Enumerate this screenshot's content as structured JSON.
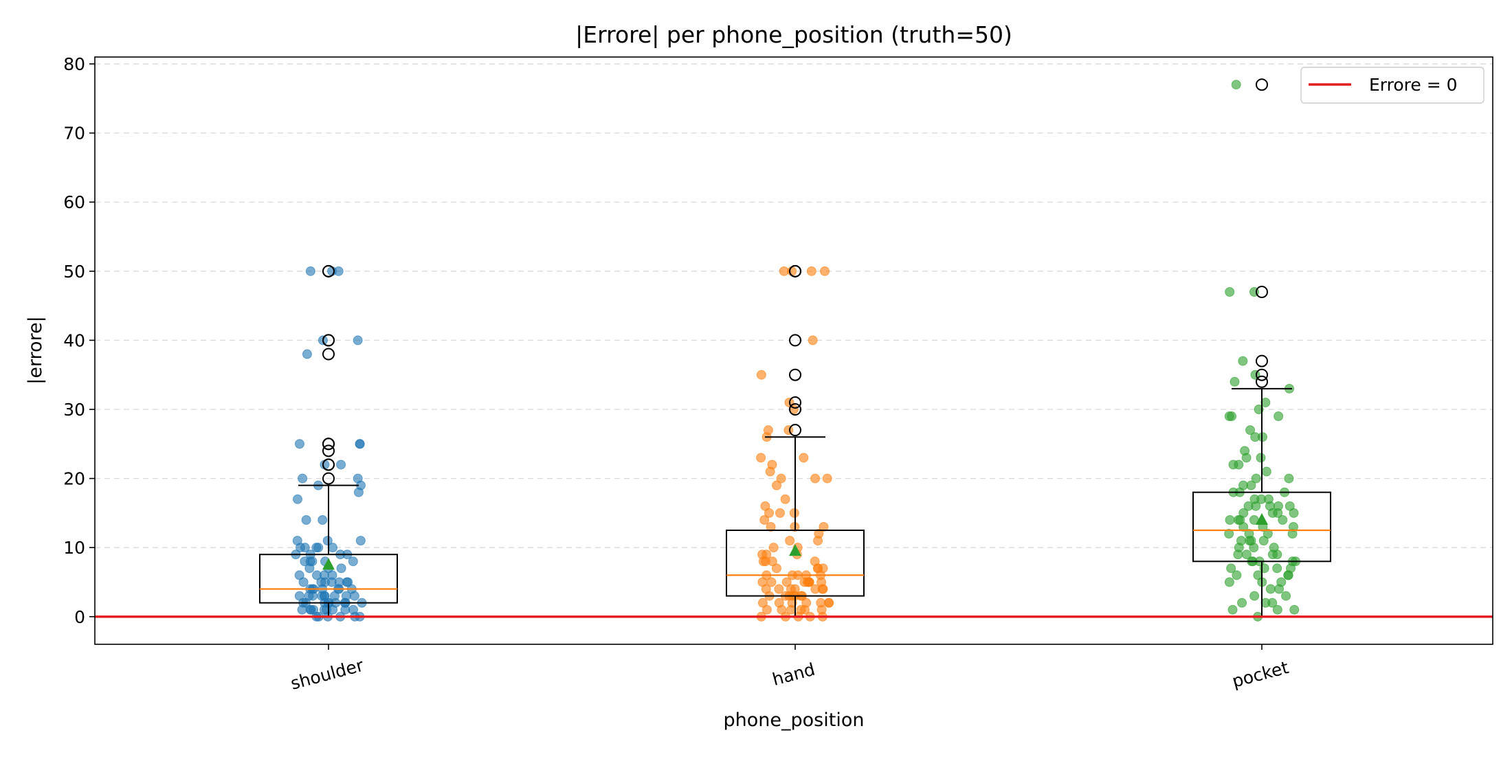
{
  "chart_data": {
    "type": "box",
    "title": "|Errore| per phone_position (truth=50)",
    "xlabel": "phone_position",
    "ylabel": "|errore|",
    "ylim": [
      -4,
      81
    ],
    "yticks": [
      0,
      10,
      20,
      30,
      40,
      50,
      60,
      70,
      80
    ],
    "grid": "horizontal dashed",
    "legend": {
      "placement": "top-right",
      "entries": [
        "Errore = 0"
      ]
    },
    "reference_line": {
      "y": 0,
      "label": "Errore = 0",
      "color": "#e41a1c"
    },
    "categories": [
      "shoulder",
      "hand",
      "pocket"
    ],
    "colors": {
      "shoulder": "#1f77b4",
      "hand": "#ff7f0e",
      "pocket": "#2ca02c",
      "median": "#ff7f0e",
      "mean_marker": "#2ca02c",
      "reference": "#e41a1c"
    },
    "boxes": [
      {
        "category": "shoulder",
        "q1": 2,
        "median": 4,
        "q3": 9,
        "whisker_low": 0,
        "whisker_high": 19,
        "mean": 7.5,
        "outliers": [
          20,
          22,
          22,
          24,
          25,
          25,
          38,
          40,
          40,
          50,
          50
        ]
      },
      {
        "category": "hand",
        "q1": 3,
        "median": 6,
        "q3": 12.5,
        "whisker_low": 0,
        "whisker_high": 26,
        "mean": 9.5,
        "outliers": [
          27,
          30,
          31,
          35,
          40,
          50,
          50
        ]
      },
      {
        "category": "pocket",
        "q1": 8,
        "median": 12.5,
        "q3": 18,
        "whisker_low": 0,
        "whisker_high": 33,
        "mean": 14,
        "outliers": [
          34,
          35,
          37,
          47,
          77
        ]
      }
    ],
    "points": {
      "shoulder": [
        [
          0,
          0
        ],
        [
          0,
          1
        ],
        [
          0,
          1
        ],
        [
          0,
          1
        ],
        [
          0,
          2
        ],
        [
          0,
          2
        ],
        [
          0,
          3
        ],
        [
          0,
          3
        ],
        [
          0,
          3
        ],
        [
          0,
          4
        ],
        [
          0,
          4
        ],
        [
          0,
          5
        ],
        [
          0,
          5
        ],
        [
          0,
          6
        ],
        [
          0,
          7
        ],
        [
          0,
          8
        ],
        [
          0,
          9
        ],
        [
          0,
          10
        ],
        [
          0,
          10
        ],
        [
          0,
          11
        ],
        [
          0,
          14
        ],
        [
          0,
          17
        ],
        [
          0,
          18
        ],
        [
          0,
          19
        ],
        [
          0,
          20
        ],
        [
          0,
          22
        ],
        [
          0,
          25
        ],
        [
          0,
          38
        ],
        [
          0,
          40
        ],
        [
          0,
          50
        ],
        [
          0,
          0
        ],
        [
          0,
          1
        ],
        [
          0,
          2
        ],
        [
          0,
          2
        ],
        [
          0,
          3
        ],
        [
          0,
          4
        ],
        [
          0,
          5
        ],
        [
          0,
          6
        ],
        [
          0,
          8
        ],
        [
          0,
          9
        ],
        [
          0,
          10
        ],
        [
          0,
          19
        ],
        [
          0,
          25
        ],
        [
          0,
          40
        ],
        [
          0,
          50
        ],
        [
          0,
          0
        ],
        [
          0,
          1
        ],
        [
          0,
          1
        ],
        [
          0,
          2
        ],
        [
          0,
          3
        ],
        [
          0,
          3
        ],
        [
          0,
          4
        ],
        [
          0,
          5
        ],
        [
          0,
          7
        ],
        [
          0,
          8
        ],
        [
          0,
          10
        ],
        [
          0,
          11
        ],
        [
          0,
          14
        ],
        [
          0,
          22
        ],
        [
          0,
          50
        ],
        [
          0,
          0
        ],
        [
          0,
          0
        ],
        [
          0,
          1
        ],
        [
          0,
          2
        ],
        [
          0,
          3
        ],
        [
          0,
          4
        ],
        [
          0,
          5
        ],
        [
          0,
          6
        ],
        [
          0,
          8
        ],
        [
          0,
          9
        ],
        [
          0,
          1
        ],
        [
          0,
          2
        ],
        [
          0,
          3
        ],
        [
          0,
          5
        ],
        [
          0,
          8
        ],
        [
          0,
          11
        ],
        [
          0,
          20
        ],
        [
          0,
          1
        ],
        [
          0,
          2
        ],
        [
          0,
          4
        ],
        [
          0,
          6
        ],
        [
          0,
          9
        ],
        [
          0,
          10
        ],
        [
          0,
          0
        ],
        [
          0,
          3
        ],
        [
          0,
          5
        ],
        [
          0,
          7
        ],
        [
          0,
          2
        ],
        [
          0,
          4
        ],
        [
          0,
          25
        ]
      ],
      "hand": [
        [
          1,
          0
        ],
        [
          1,
          0
        ],
        [
          1,
          1
        ],
        [
          1,
          1
        ],
        [
          1,
          1
        ],
        [
          1,
          2
        ],
        [
          1,
          2
        ],
        [
          1,
          2
        ],
        [
          1,
          3
        ],
        [
          1,
          3
        ],
        [
          1,
          3
        ],
        [
          1,
          4
        ],
        [
          1,
          4
        ],
        [
          1,
          4
        ],
        [
          1,
          5
        ],
        [
          1,
          5
        ],
        [
          1,
          5
        ],
        [
          1,
          5
        ],
        [
          1,
          6
        ],
        [
          1,
          6
        ],
        [
          1,
          7
        ],
        [
          1,
          7
        ],
        [
          1,
          8
        ],
        [
          1,
          8
        ],
        [
          1,
          9
        ],
        [
          1,
          9
        ],
        [
          1,
          10
        ],
        [
          1,
          11
        ],
        [
          1,
          12
        ],
        [
          1,
          13
        ],
        [
          1,
          13
        ],
        [
          1,
          14
        ],
        [
          1,
          15
        ],
        [
          1,
          15
        ],
        [
          1,
          16
        ],
        [
          1,
          17
        ],
        [
          1,
          19
        ],
        [
          1,
          20
        ],
        [
          1,
          20
        ],
        [
          1,
          21
        ],
        [
          1,
          22
        ],
        [
          1,
          23
        ],
        [
          1,
          23
        ],
        [
          1,
          26
        ],
        [
          1,
          27
        ],
        [
          1,
          27
        ],
        [
          1,
          30
        ],
        [
          1,
          31
        ],
        [
          1,
          35
        ],
        [
          1,
          40
        ],
        [
          1,
          50
        ],
        [
          1,
          50
        ],
        [
          1,
          50
        ],
        [
          1,
          50
        ],
        [
          1,
          0
        ],
        [
          1,
          1
        ],
        [
          1,
          2
        ],
        [
          1,
          3
        ],
        [
          1,
          4
        ],
        [
          1,
          5
        ],
        [
          1,
          6
        ],
        [
          1,
          8
        ],
        [
          1,
          10
        ],
        [
          1,
          1
        ],
        [
          1,
          2
        ],
        [
          1,
          3
        ],
        [
          1,
          4
        ],
        [
          1,
          5
        ],
        [
          1,
          6
        ],
        [
          1,
          7
        ],
        [
          1,
          9
        ],
        [
          1,
          11
        ],
        [
          1,
          15
        ],
        [
          1,
          0
        ],
        [
          1,
          2
        ],
        [
          1,
          3
        ],
        [
          1,
          4
        ],
        [
          1,
          5
        ],
        [
          1,
          6
        ],
        [
          1,
          20
        ],
        [
          1,
          1
        ],
        [
          1,
          3
        ],
        [
          1,
          4
        ],
        [
          1,
          5
        ],
        [
          1,
          8
        ],
        [
          1,
          13
        ],
        [
          1,
          0
        ],
        [
          1,
          2
        ],
        [
          1,
          5
        ],
        [
          1,
          7
        ]
      ],
      "pocket": [
        [
          2,
          0
        ],
        [
          2,
          1
        ],
        [
          2,
          1
        ],
        [
          2,
          2
        ],
        [
          2,
          2
        ],
        [
          2,
          3
        ],
        [
          2,
          4
        ],
        [
          2,
          5
        ],
        [
          2,
          5
        ],
        [
          2,
          6
        ],
        [
          2,
          6
        ],
        [
          2,
          7
        ],
        [
          2,
          7
        ],
        [
          2,
          8
        ],
        [
          2,
          8
        ],
        [
          2,
          8
        ],
        [
          2,
          9
        ],
        [
          2,
          9
        ],
        [
          2,
          10
        ],
        [
          2,
          10
        ],
        [
          2,
          11
        ],
        [
          2,
          11
        ],
        [
          2,
          12
        ],
        [
          2,
          12
        ],
        [
          2,
          13
        ],
        [
          2,
          13
        ],
        [
          2,
          14
        ],
        [
          2,
          14
        ],
        [
          2,
          14
        ],
        [
          2,
          15
        ],
        [
          2,
          15
        ],
        [
          2,
          16
        ],
        [
          2,
          16
        ],
        [
          2,
          16
        ],
        [
          2,
          17
        ],
        [
          2,
          17
        ],
        [
          2,
          18
        ],
        [
          2,
          18
        ],
        [
          2,
          19
        ],
        [
          2,
          20
        ],
        [
          2,
          20
        ],
        [
          2,
          21
        ],
        [
          2,
          22
        ],
        [
          2,
          22
        ],
        [
          2,
          23
        ],
        [
          2,
          24
        ],
        [
          2,
          26
        ],
        [
          2,
          26
        ],
        [
          2,
          27
        ],
        [
          2,
          29
        ],
        [
          2,
          29
        ],
        [
          2,
          29
        ],
        [
          2,
          30
        ],
        [
          2,
          31
        ],
        [
          2,
          33
        ],
        [
          2,
          34
        ],
        [
          2,
          35
        ],
        [
          2,
          37
        ],
        [
          2,
          47
        ],
        [
          2,
          47
        ],
        [
          2,
          77
        ],
        [
          2,
          1
        ],
        [
          2,
          3
        ],
        [
          2,
          5
        ],
        [
          2,
          7
        ],
        [
          2,
          9
        ],
        [
          2,
          11
        ],
        [
          2,
          13
        ],
        [
          2,
          15
        ],
        [
          2,
          17
        ],
        [
          2,
          19
        ],
        [
          2,
          4
        ],
        [
          2,
          6
        ],
        [
          2,
          8
        ],
        [
          2,
          10
        ],
        [
          2,
          12
        ],
        [
          2,
          14
        ],
        [
          2,
          16
        ],
        [
          2,
          18
        ],
        [
          2,
          2
        ],
        [
          2,
          6
        ],
        [
          2,
          9
        ],
        [
          2,
          12
        ],
        [
          2,
          15
        ],
        [
          2,
          23
        ],
        [
          2,
          8
        ],
        [
          2,
          11
        ],
        [
          2,
          14
        ],
        [
          2,
          7
        ],
        [
          2,
          16
        ]
      ]
    }
  }
}
